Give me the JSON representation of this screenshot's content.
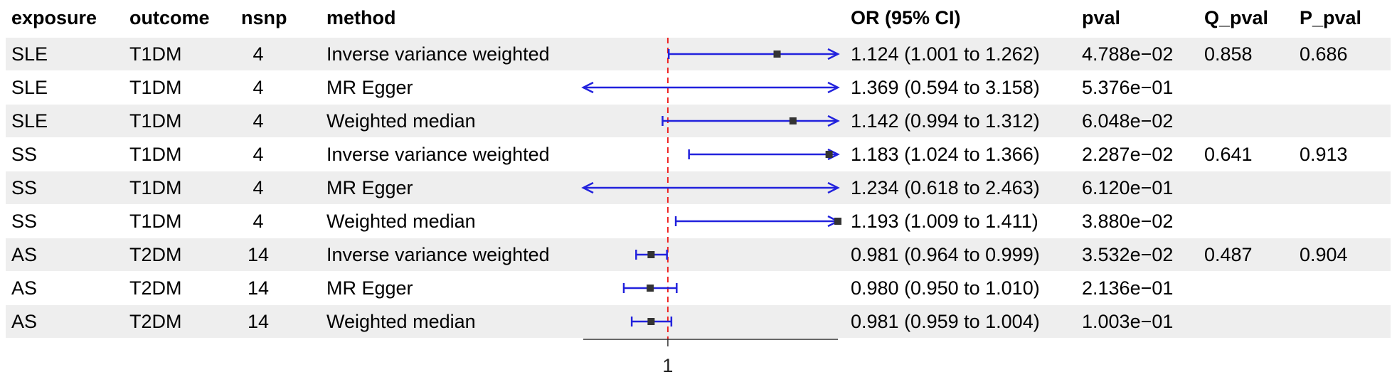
{
  "headers": {
    "exposure": "exposure",
    "outcome": "outcome",
    "nsnp": "nsnp",
    "method": "method",
    "or_ci": "OR (95% CI)",
    "pval": "pval",
    "q_pval": "Q_pval",
    "p_pval": "P_pval"
  },
  "rows": [
    {
      "exposure": "SLE",
      "outcome": "T1DM",
      "nsnp": "4",
      "method": "Inverse variance weighted",
      "or_ci": "1.124 (1.001 to 1.262)",
      "pval": "4.788e−02",
      "q_pval": "0.858",
      "p_pval": "0.686"
    },
    {
      "exposure": "SLE",
      "outcome": "T1DM",
      "nsnp": "4",
      "method": "MR Egger",
      "or_ci": "1.369 (0.594 to 3.158)",
      "pval": "5.376e−01",
      "q_pval": "",
      "p_pval": ""
    },
    {
      "exposure": "SLE",
      "outcome": "T1DM",
      "nsnp": "4",
      "method": "Weighted median",
      "or_ci": "1.142 (0.994 to 1.312)",
      "pval": "6.048e−02",
      "q_pval": "",
      "p_pval": ""
    },
    {
      "exposure": "SS",
      "outcome": "T1DM",
      "nsnp": "4",
      "method": "Inverse variance weighted",
      "or_ci": "1.183 (1.024 to 1.366)",
      "pval": "2.287e−02",
      "q_pval": "0.641",
      "p_pval": "0.913"
    },
    {
      "exposure": "SS",
      "outcome": "T1DM",
      "nsnp": "4",
      "method": "MR Egger",
      "or_ci": "1.234 (0.618 to 2.463)",
      "pval": "6.120e−01",
      "q_pval": "",
      "p_pval": ""
    },
    {
      "exposure": "SS",
      "outcome": "T1DM",
      "nsnp": "4",
      "method": "Weighted median",
      "or_ci": "1.193 (1.009 to 1.411)",
      "pval": "3.880e−02",
      "q_pval": "",
      "p_pval": ""
    },
    {
      "exposure": "AS",
      "outcome": "T2DM",
      "nsnp": "14",
      "method": "Inverse variance weighted",
      "or_ci": "0.981 (0.964 to 0.999)",
      "pval": "3.532e−02",
      "q_pval": "0.487",
      "p_pval": "0.904"
    },
    {
      "exposure": "AS",
      "outcome": "T2DM",
      "nsnp": "14",
      "method": "MR Egger",
      "or_ci": "0.980 (0.950 to 1.010)",
      "pval": "2.136e−01",
      "q_pval": "",
      "p_pval": ""
    },
    {
      "exposure": "AS",
      "outcome": "T2DM",
      "nsnp": "14",
      "method": "Weighted median",
      "or_ci": "0.981 (0.959 to 1.004)",
      "pval": "1.003e−01",
      "q_pval": "",
      "p_pval": ""
    }
  ],
  "chart_data": {
    "type": "forest",
    "reference_line": 1,
    "x_ticks": [
      "1"
    ],
    "xlim": [
      0.904,
      1.193
    ],
    "series": [
      {
        "or": 1.124,
        "lower": 1.001,
        "upper": 1.262
      },
      {
        "or": 1.369,
        "lower": 0.594,
        "upper": 3.158
      },
      {
        "or": 1.142,
        "lower": 0.994,
        "upper": 1.312
      },
      {
        "or": 1.183,
        "lower": 1.024,
        "upper": 1.366
      },
      {
        "or": 1.234,
        "lower": 0.618,
        "upper": 2.463
      },
      {
        "or": 1.193,
        "lower": 1.009,
        "upper": 1.411
      },
      {
        "or": 0.981,
        "lower": 0.964,
        "upper": 0.999
      },
      {
        "or": 0.98,
        "lower": 0.95,
        "upper": 1.01
      },
      {
        "or": 0.981,
        "lower": 0.959,
        "upper": 1.004
      }
    ],
    "colors": {
      "ci_line": "#2222dd",
      "point": "#333333",
      "ref_line": "#ee2222",
      "axis": "#333333"
    }
  }
}
